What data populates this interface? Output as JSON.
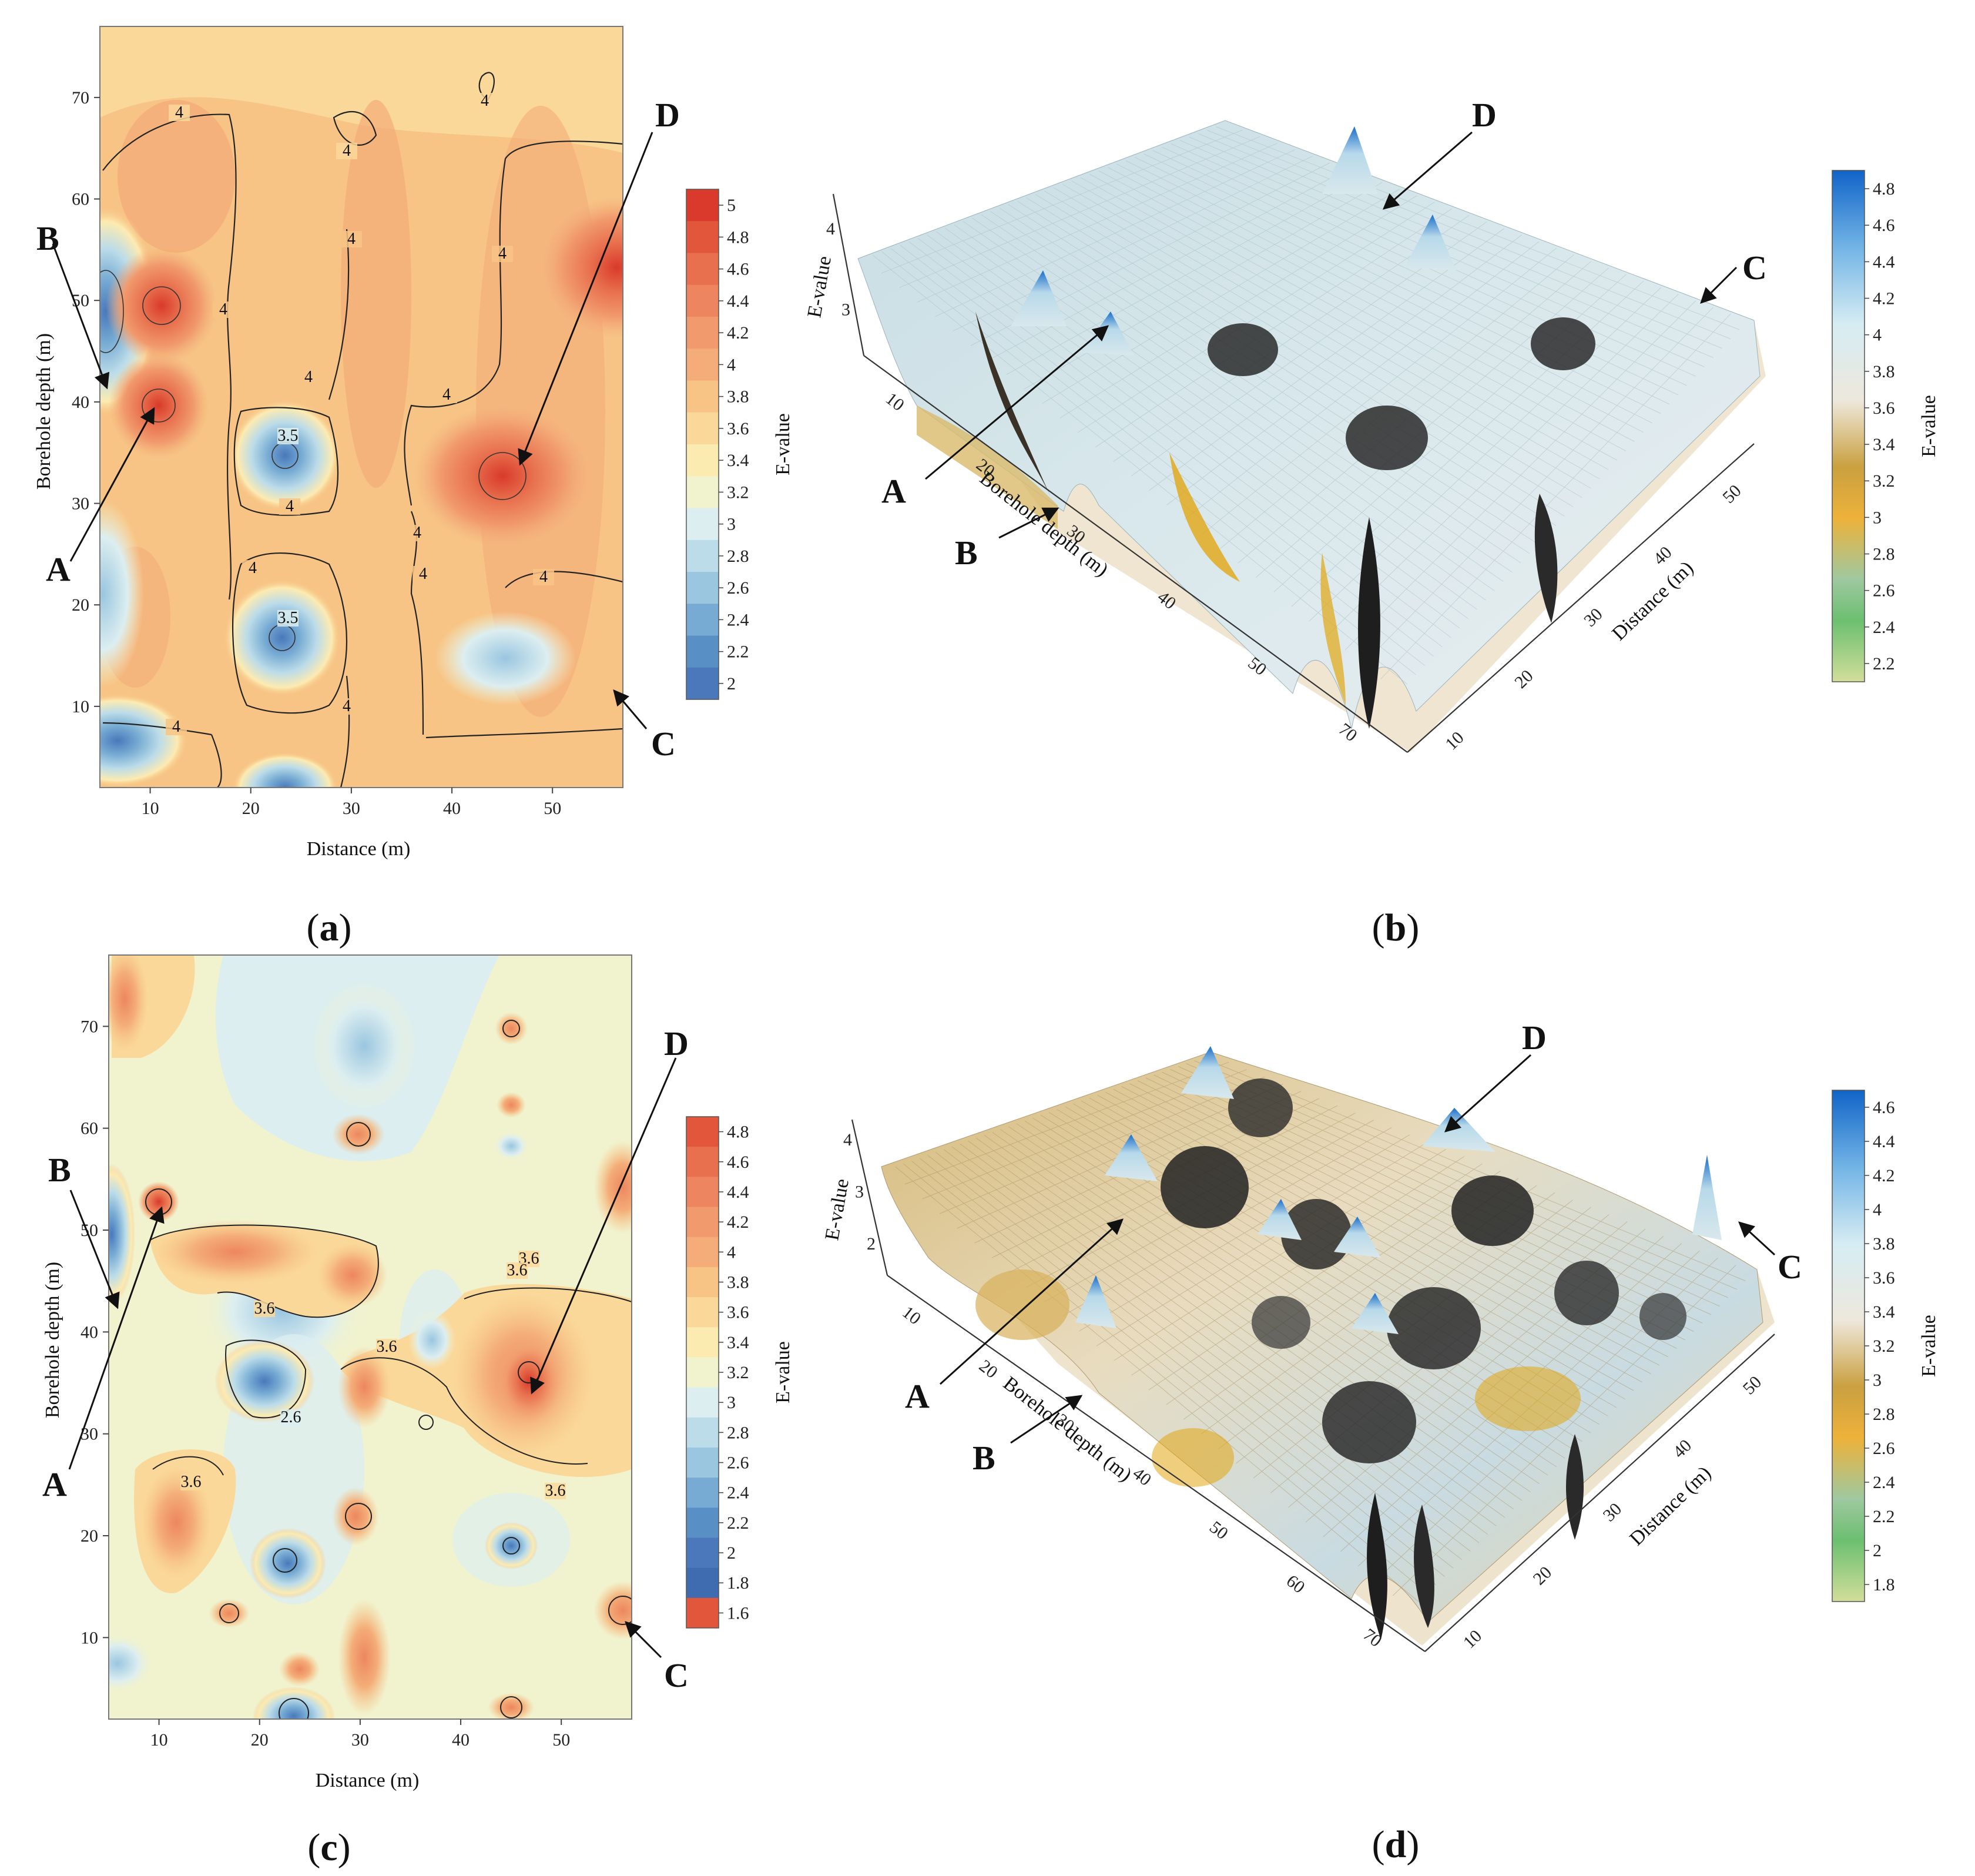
{
  "panels": [
    {
      "id": "a",
      "caption": "a",
      "kind": "contour",
      "xlabel": "Distance (m)",
      "ylabel": "Borehole depth (m)",
      "xticks": [
        10,
        20,
        30,
        40,
        50
      ],
      "yticks": [
        10,
        20,
        30,
        40,
        50,
        60,
        70
      ],
      "xlim": [
        5,
        57
      ],
      "ylim": [
        2,
        77
      ],
      "colorbar": {
        "label": "E-value",
        "ticks": [
          "5",
          "4.8",
          "4.6",
          "4.4",
          "4.2",
          "4",
          "3.8",
          "3.6",
          "3.4",
          "3.2",
          "3",
          "2.8",
          "2.6",
          "2.4",
          "2.2",
          "2"
        ]
      },
      "contour_labels": [
        "4",
        "4",
        "4",
        "4",
        "4",
        "4",
        "4",
        "4",
        "4",
        "4",
        "4",
        "4",
        "4",
        "4",
        "4",
        "3.5",
        "3.5"
      ],
      "callouts": [
        "A",
        "B",
        "C",
        "D"
      ]
    },
    {
      "id": "b",
      "caption": "b",
      "kind": "surface",
      "xlabel": "Distance (m)",
      "ylabel": "Borehole depth (m)",
      "zlabel": "E-value",
      "xticks": [
        "10",
        "20",
        "30",
        "40",
        "50"
      ],
      "yticks": [
        "10",
        "20",
        "30",
        "40",
        "50",
        "70"
      ],
      "zticks": [
        "3",
        "4"
      ],
      "colorbar": {
        "label": "E-value",
        "ticks": [
          "4.8",
          "4.6",
          "4.4",
          "4.2",
          "4",
          "3.8",
          "3.6",
          "3.4",
          "3.2",
          "3",
          "2.8",
          "2.6",
          "2.4",
          "2.2"
        ]
      },
      "callouts": [
        "A",
        "B",
        "C",
        "D"
      ]
    },
    {
      "id": "c",
      "caption": "c",
      "kind": "contour",
      "xlabel": "Distance (m)",
      "ylabel": "Borehole depth (m)",
      "xticks": [
        10,
        20,
        30,
        40,
        50
      ],
      "yticks": [
        10,
        20,
        30,
        40,
        50,
        60,
        70
      ],
      "xlim": [
        5,
        57
      ],
      "ylim": [
        2,
        77
      ],
      "colorbar": {
        "label": "E-value",
        "ticks": [
          "4.8",
          "4.6",
          "4.4",
          "4.2",
          "4",
          "3.8",
          "3.6",
          "3.4",
          "3.2",
          "3",
          "2.8",
          "2.6",
          "2.4",
          "2.2",
          "2",
          "1.8",
          "1.6"
        ]
      },
      "contour_labels": [
        "3.6",
        "3.6",
        "3.6",
        "3.6",
        "3.6",
        "2.6",
        "3.6"
      ],
      "callouts": [
        "A",
        "B",
        "C",
        "D"
      ]
    },
    {
      "id": "d",
      "caption": "d",
      "kind": "surface",
      "xlabel": "Distance (m)",
      "ylabel": "Borehole depth (m)",
      "zlabel": "E-value",
      "xticks": [
        "10",
        "20",
        "30",
        "40",
        "50"
      ],
      "yticks": [
        "10",
        "20",
        "30",
        "40",
        "50",
        "60",
        "70"
      ],
      "zticks": [
        "2",
        "3",
        "4"
      ],
      "colorbar": {
        "label": "E-value",
        "ticks": [
          "4.6",
          "4.4",
          "4.2",
          "4",
          "3.8",
          "3.6",
          "3.4",
          "3.2",
          "3",
          "2.8",
          "2.6",
          "2.4",
          "2.2",
          "2",
          "1.8"
        ]
      },
      "callouts": [
        "A",
        "B",
        "C",
        "D"
      ]
    }
  ],
  "colors": {
    "red_scale": [
      "#d93a2b",
      "#e2573c",
      "#e8704e",
      "#ed8660",
      "#f19a6d",
      "#f4ad78",
      "#f7c485",
      "#fad89a",
      "#fcebb1",
      "#f1f3cf",
      "#dceef0",
      "#bcdce9",
      "#9ac6e0",
      "#77abd3",
      "#5890c6",
      "#4a78bb"
    ],
    "surf_scale": [
      "#1164c8",
      "#3b8ad8",
      "#72b4e6",
      "#a9d6ef",
      "#d6ecf3",
      "#ede8dc",
      "#e6d4b2",
      "#d9bb80",
      "#caa040",
      "#e1a613",
      "#edb23a",
      "#9fc8a0",
      "#6cbf70",
      "#a8cc8a",
      "#d2de9b"
    ]
  }
}
